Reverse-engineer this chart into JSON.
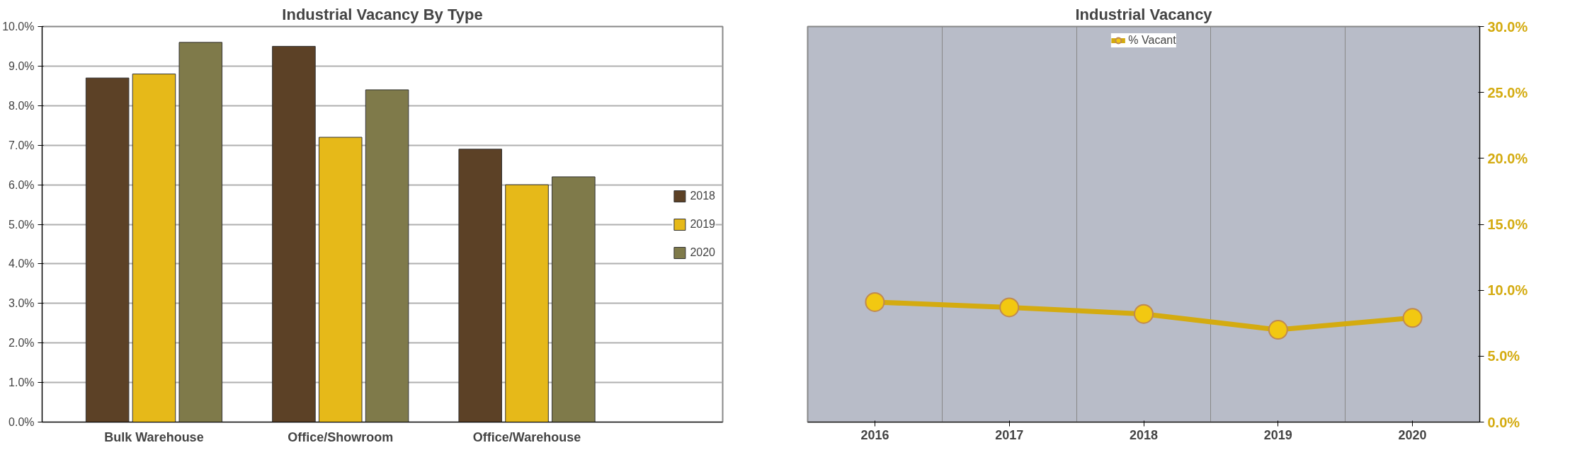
{
  "chart_data": [
    {
      "type": "bar",
      "title": "Industrial Vacancy By Type",
      "categories": [
        "Bulk Warehouse",
        "Office/Showroom",
        "Office/Warehouse"
      ],
      "series": [
        {
          "name": "2018",
          "color": "#5c4126",
          "values": [
            8.7,
            9.5,
            6.9
          ]
        },
        {
          "name": "2019",
          "color": "#e6b919",
          "values": [
            8.8,
            7.2,
            6.0
          ]
        },
        {
          "name": "2020",
          "color": "#7f7a4a",
          "values": [
            9.6,
            8.4,
            6.2
          ]
        }
      ],
      "ylim": [
        0,
        10
      ],
      "yticks": [
        {
          "value": 0,
          "label": "0.0%"
        },
        {
          "value": 1,
          "label": "1.0%"
        },
        {
          "value": 2,
          "label": "2.0%"
        },
        {
          "value": 3,
          "label": "3.0%"
        },
        {
          "value": 4,
          "label": "4.0%"
        },
        {
          "value": 5,
          "label": "5.0%"
        },
        {
          "value": 6,
          "label": "6.0%"
        },
        {
          "value": 7,
          "label": "7.0%"
        },
        {
          "value": 8,
          "label": "8.0%"
        },
        {
          "value": 9,
          "label": "9.0%"
        },
        {
          "value": 10,
          "label": "10.0%"
        }
      ],
      "grid": "y",
      "legend": "right"
    },
    {
      "type": "line",
      "title": "Industrial Vacancy",
      "categories": [
        "2016",
        "2017",
        "2018",
        "2019",
        "2020"
      ],
      "series": [
        {
          "name": "% Vacant",
          "color": "#d4ab10",
          "values": [
            9.1,
            8.7,
            8.2,
            7.0,
            7.9
          ],
          "axis": "y2"
        }
      ],
      "y2lim": [
        0,
        30
      ],
      "y2ticks": [
        {
          "value": 0,
          "label": "0.0%"
        },
        {
          "value": 5,
          "label": "5.0%"
        },
        {
          "value": 10,
          "label": "10.0%"
        },
        {
          "value": 15,
          "label": "15.0%"
        },
        {
          "value": 20,
          "label": "20.0%"
        },
        {
          "value": 25,
          "label": "25.0%"
        },
        {
          "value": 30,
          "label": "30.0%"
        }
      ],
      "grid": "x",
      "legend": "top",
      "marker": "circle",
      "line_style": "solid"
    }
  ]
}
